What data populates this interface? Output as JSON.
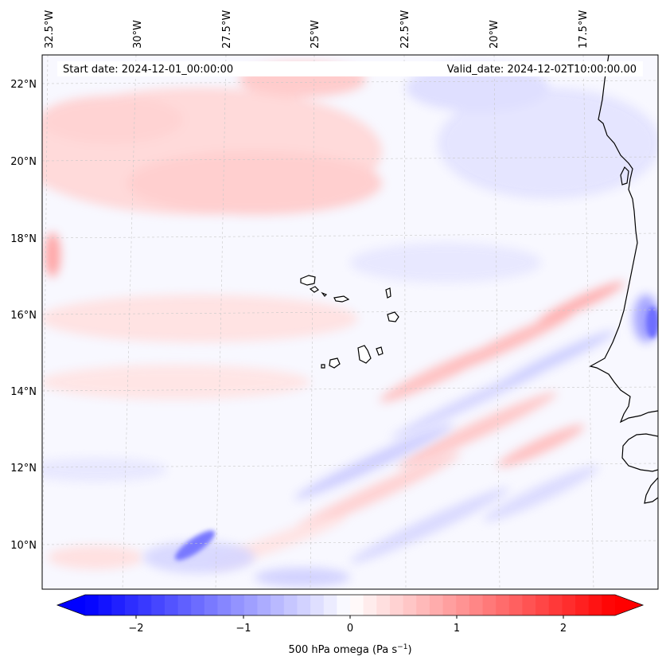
{
  "map": {
    "start_label": "Start date: 2024-12-01_00:00:00",
    "valid_label": "Valid_date: 2024-12-02T10:00:00.00",
    "lon_labels": [
      "32.5°W",
      "30°W",
      "27.5°W",
      "25°W",
      "22.5°W",
      "20°W",
      "17.5°W"
    ],
    "lat_labels": [
      "22°N",
      "20°N",
      "18°N",
      "16°N",
      "14°N",
      "12°N",
      "10°N"
    ],
    "field": "500 hPa omega"
  },
  "colorbar": {
    "label_text": "500 hPa omega (Pa s",
    "label_exp": "−1",
    "label_close": ")",
    "tick_labels": [
      "−2",
      "−1",
      "0",
      "1",
      "2"
    ],
    "colors": {
      "negative": "#0000ff",
      "zero": "#ffffff",
      "positive": "#ff0000"
    }
  }
}
